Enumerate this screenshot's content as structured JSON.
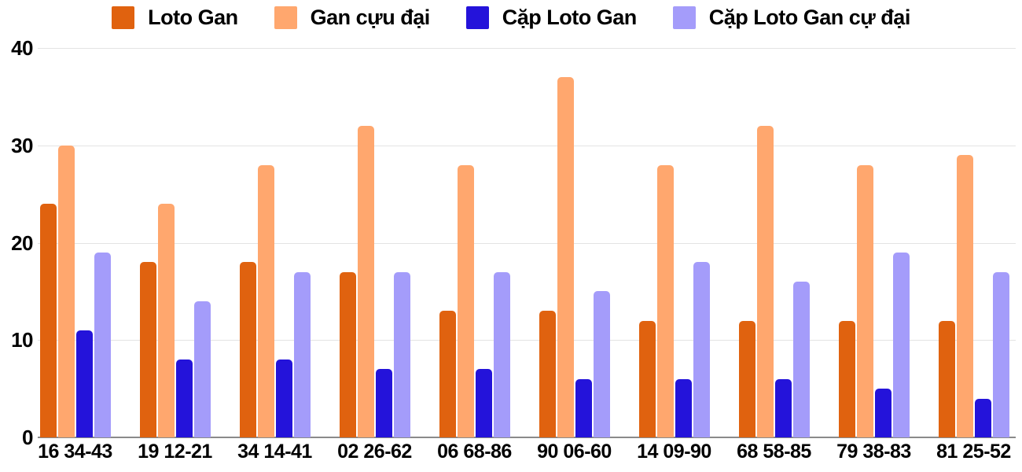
{
  "chart_data": {
    "type": "bar",
    "title": "",
    "xlabel": "",
    "ylabel": "",
    "categories": [
      "16 34-43",
      "19 12-21",
      "34 14-41",
      "02 26-62",
      "06 68-86",
      "90 06-60",
      "14 09-90",
      "68 58-85",
      "79 38-83",
      "81 25-52"
    ],
    "series": [
      {
        "name": "Loto Gan",
        "color": "#e0620f",
        "values": [
          24,
          18,
          18,
          17,
          13,
          13,
          12,
          12,
          12,
          12
        ]
      },
      {
        "name": "Gan cựu đại",
        "color": "#ffa76e",
        "values": [
          30,
          24,
          28,
          32,
          28,
          37,
          28,
          32,
          28,
          29
        ]
      },
      {
        "name": "Cặp Loto Gan",
        "color": "#2413da",
        "values": [
          11,
          8,
          8,
          7,
          7,
          6,
          6,
          6,
          5,
          4
        ]
      },
      {
        "name": "Cặp Loto Gan cự đại",
        "color": "#a49cfa",
        "values": [
          19,
          14,
          17,
          17,
          17,
          15,
          18,
          16,
          19,
          17
        ]
      }
    ],
    "ylim": [
      0,
      40
    ],
    "yticks": [
      0,
      10,
      20,
      30,
      40
    ],
    "grid": true,
    "legend_position": "top"
  },
  "colors": {
    "background": "#ffffff",
    "gridline": "#e3e3e3",
    "axis_line": "#8a8a8a",
    "text": "#000000"
  }
}
